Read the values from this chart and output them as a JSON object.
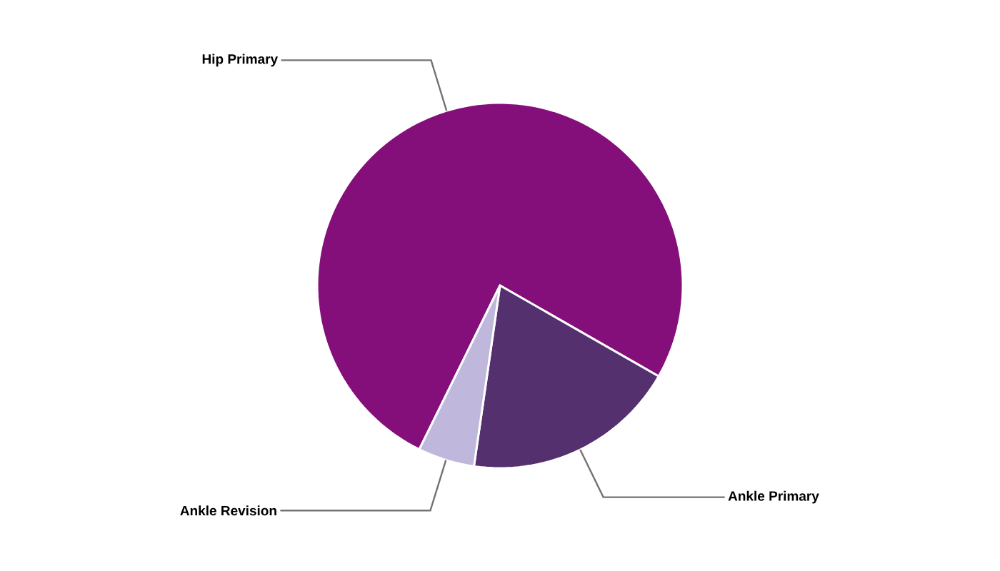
{
  "chart_data": {
    "type": "pie",
    "categories": [
      "Hip Primary",
      "Ankle Primary",
      "Ankle Revision"
    ],
    "values": [
      76,
      19,
      5
    ],
    "colors": [
      "#850f7a",
      "#55306e",
      "#c0b8dc"
    ]
  }
}
